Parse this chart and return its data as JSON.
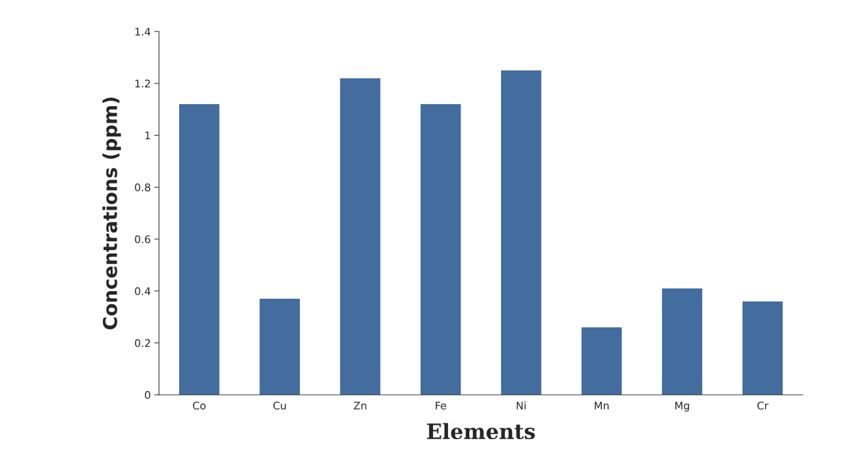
{
  "chart_data": {
    "type": "bar",
    "xlabel": "Elements",
    "ylabel": "Concentrations (ppm)",
    "categories": [
      "Co",
      "Cu",
      "Zn",
      "Fe",
      "Ni",
      "Mn",
      "Mg",
      "Cr"
    ],
    "values": [
      1.12,
      0.37,
      1.22,
      1.12,
      1.25,
      0.26,
      0.41,
      0.36
    ],
    "color": "#436c9f",
    "ylim": [
      0,
      1.4
    ],
    "yticks": [
      0,
      0.2,
      0.4,
      0.6,
      0.8,
      1,
      1.2,
      1.4
    ],
    "grid": false,
    "legend": false
  }
}
